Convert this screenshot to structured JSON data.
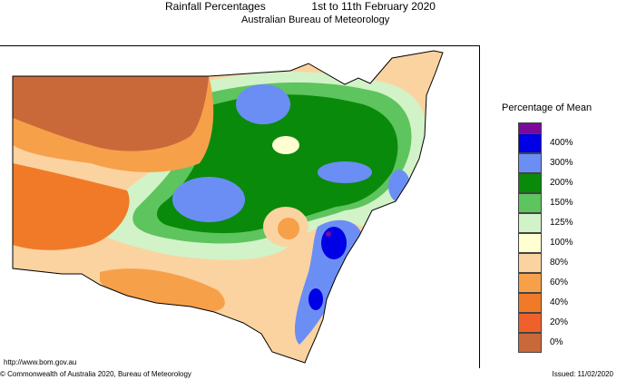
{
  "header": {
    "title": "Rainfall Percentages",
    "period": "1st to 11th February 2020",
    "subtitle": "Australian Bureau of Meteorology"
  },
  "legend": {
    "title": "Percentage of Mean",
    "items": [
      {
        "label": "",
        "color": "#7a0a9a"
      },
      {
        "label": "400%",
        "color": "#0000e6"
      },
      {
        "label": "300%",
        "color": "#6b8ef5"
      },
      {
        "label": "200%",
        "color": "#0a8a0a"
      },
      {
        "label": "150%",
        "color": "#5ec45e"
      },
      {
        "label": "125%",
        "color": "#d2f2c8"
      },
      {
        "label": "100%",
        "color": "#ffffd2"
      },
      {
        "label": "80%",
        "color": "#fbd3a0"
      },
      {
        "label": "60%",
        "color": "#f7a04a"
      },
      {
        "label": "40%",
        "color": "#f07a28"
      },
      {
        "label": "20%",
        "color": "#f0602a"
      },
      {
        "label": "0%",
        "color": "#c9693a"
      }
    ]
  },
  "footer": {
    "url": "http://www.bom.gov.au",
    "copyright": "© Commonwealth of Australia 2020, Bureau of Meteorology",
    "issued": "Issued: 11/02/2020"
  }
}
